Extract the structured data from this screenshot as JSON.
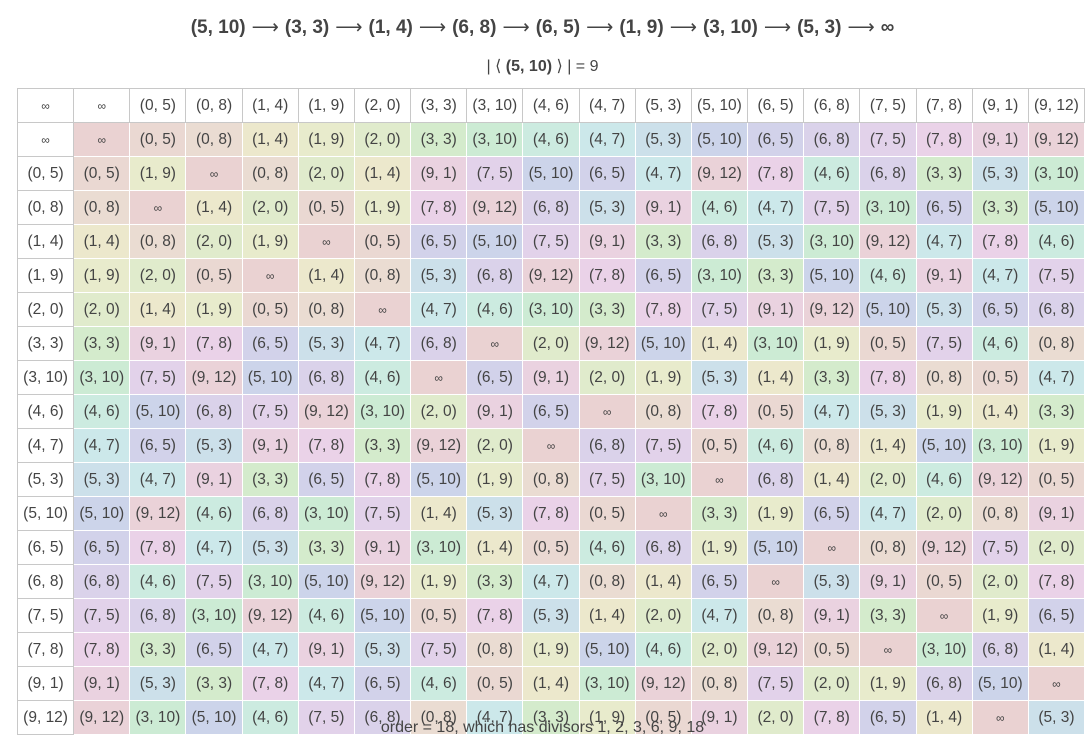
{
  "title": {
    "cycle": [
      "(5, 10)",
      "(3, 3)",
      "(1, 4)",
      "(6, 8)",
      "(6, 5)",
      "(1, 9)",
      "(3, 10)",
      "(5, 3)",
      "∞"
    ],
    "arrow": "⟶"
  },
  "subtitle": {
    "prefix": "| ⟨",
    "generator": "(5, 10)",
    "suffix": "⟩ | = 9"
  },
  "footer": "order = 18, which has divisors 1, 2, 3, 6, 9, 18",
  "colors": {
    "∞": "#ead2d2",
    "(0, 5)": "#ead8d2",
    "(0, 8)": "#eadcd2",
    "(1, 4)": "#ece8cc",
    "(1, 9)": "#e8ebcc",
    "(2, 0)": "#e0ebcc",
    "(3, 3)": "#d4ebcc",
    "(3, 10)": "#ccebd4",
    "(4, 6)": "#ccebe0",
    "(4, 7)": "#cce8ea",
    "(5, 3)": "#cce0ea",
    "(5, 10)": "#ccd4ea",
    "(6, 5)": "#d2d2ea",
    "(6, 8)": "#dad2ea",
    "(7, 5)": "#e2d2ea",
    "(7, 8)": "#ead2e8",
    "(9, 1)": "#ead2e0",
    "(9, 12)": "#ead2d8"
  },
  "table": {
    "header": [
      "∞",
      "∞",
      "(0, 5)",
      "(0, 8)",
      "(1, 4)",
      "(1, 9)",
      "(2, 0)",
      "(3, 3)",
      "(3, 10)",
      "(4, 6)",
      "(4, 7)",
      "(5, 3)",
      "(5, 10)",
      "(6, 5)",
      "(6, 8)",
      "(7, 5)",
      "(7, 8)",
      "(9, 1)",
      "(9, 12)"
    ],
    "rows": [
      [
        "∞",
        "∞",
        "(0, 5)",
        "(0, 8)",
        "(1, 4)",
        "(1, 9)",
        "(2, 0)",
        "(3, 3)",
        "(3, 10)",
        "(4, 6)",
        "(4, 7)",
        "(5, 3)",
        "(5, 10)",
        "(6, 5)",
        "(6, 8)",
        "(7, 5)",
        "(7, 8)",
        "(9, 1)",
        "(9, 12)"
      ],
      [
        "(0, 5)",
        "(0, 5)",
        "(1, 9)",
        "∞",
        "(0, 8)",
        "(2, 0)",
        "(1, 4)",
        "(9, 1)",
        "(7, 5)",
        "(5, 10)",
        "(6, 5)",
        "(4, 7)",
        "(9, 12)",
        "(7, 8)",
        "(4, 6)",
        "(6, 8)",
        "(3, 3)",
        "(5, 3)",
        "(3, 10)"
      ],
      [
        "(0, 8)",
        "(0, 8)",
        "∞",
        "(1, 4)",
        "(2, 0)",
        "(0, 5)",
        "(1, 9)",
        "(7, 8)",
        "(9, 12)",
        "(6, 8)",
        "(5, 3)",
        "(9, 1)",
        "(4, 6)",
        "(4, 7)",
        "(7, 5)",
        "(3, 10)",
        "(6, 5)",
        "(3, 3)",
        "(5, 10)"
      ],
      [
        "(1, 4)",
        "(1, 4)",
        "(0, 8)",
        "(2, 0)",
        "(1, 9)",
        "∞",
        "(0, 5)",
        "(6, 5)",
        "(5, 10)",
        "(7, 5)",
        "(9, 1)",
        "(3, 3)",
        "(6, 8)",
        "(5, 3)",
        "(3, 10)",
        "(9, 12)",
        "(4, 7)",
        "(7, 8)",
        "(4, 6)"
      ],
      [
        "(1, 9)",
        "(1, 9)",
        "(2, 0)",
        "(0, 5)",
        "∞",
        "(1, 4)",
        "(0, 8)",
        "(5, 3)",
        "(6, 8)",
        "(9, 12)",
        "(7, 8)",
        "(6, 5)",
        "(3, 10)",
        "(3, 3)",
        "(5, 10)",
        "(4, 6)",
        "(9, 1)",
        "(4, 7)",
        "(7, 5)"
      ],
      [
        "(2, 0)",
        "(2, 0)",
        "(1, 4)",
        "(1, 9)",
        "(0, 5)",
        "(0, 8)",
        "∞",
        "(4, 7)",
        "(4, 6)",
        "(3, 10)",
        "(3, 3)",
        "(7, 8)",
        "(7, 5)",
        "(9, 1)",
        "(9, 12)",
        "(5, 10)",
        "(5, 3)",
        "(6, 5)",
        "(6, 8)"
      ],
      [
        "(3, 3)",
        "(3, 3)",
        "(9, 1)",
        "(7, 8)",
        "(6, 5)",
        "(5, 3)",
        "(4, 7)",
        "(6, 8)",
        "∞",
        "(2, 0)",
        "(9, 12)",
        "(5, 10)",
        "(1, 4)",
        "(3, 10)",
        "(1, 9)",
        "(0, 5)",
        "(7, 5)",
        "(4, 6)",
        "(0, 8)"
      ],
      [
        "(3, 10)",
        "(3, 10)",
        "(7, 5)",
        "(9, 12)",
        "(5, 10)",
        "(6, 8)",
        "(4, 6)",
        "∞",
        "(6, 5)",
        "(9, 1)",
        "(2, 0)",
        "(1, 9)",
        "(5, 3)",
        "(1, 4)",
        "(3, 3)",
        "(7, 8)",
        "(0, 8)",
        "(0, 5)",
        "(4, 7)"
      ],
      [
        "(4, 6)",
        "(4, 6)",
        "(5, 10)",
        "(6, 8)",
        "(7, 5)",
        "(9, 12)",
        "(3, 10)",
        "(2, 0)",
        "(9, 1)",
        "(6, 5)",
        "∞",
        "(0, 8)",
        "(7, 8)",
        "(0, 5)",
        "(4, 7)",
        "(5, 3)",
        "(1, 9)",
        "(1, 4)",
        "(3, 3)"
      ],
      [
        "(4, 7)",
        "(4, 7)",
        "(6, 5)",
        "(5, 3)",
        "(9, 1)",
        "(7, 8)",
        "(3, 3)",
        "(9, 12)",
        "(2, 0)",
        "∞",
        "(6, 8)",
        "(7, 5)",
        "(0, 5)",
        "(4, 6)",
        "(0, 8)",
        "(1, 4)",
        "(5, 10)",
        "(3, 10)",
        "(1, 9)"
      ],
      [
        "(5, 3)",
        "(5, 3)",
        "(4, 7)",
        "(9, 1)",
        "(3, 3)",
        "(6, 5)",
        "(7, 8)",
        "(5, 10)",
        "(1, 9)",
        "(0, 8)",
        "(7, 5)",
        "(3, 10)",
        "∞",
        "(6, 8)",
        "(1, 4)",
        "(2, 0)",
        "(4, 6)",
        "(9, 12)",
        "(0, 5)"
      ],
      [
        "(5, 10)",
        "(5, 10)",
        "(9, 12)",
        "(4, 6)",
        "(6, 8)",
        "(3, 10)",
        "(7, 5)",
        "(1, 4)",
        "(5, 3)",
        "(7, 8)",
        "(0, 5)",
        "∞",
        "(3, 3)",
        "(1, 9)",
        "(6, 5)",
        "(4, 7)",
        "(2, 0)",
        "(0, 8)",
        "(9, 1)"
      ],
      [
        "(6, 5)",
        "(6, 5)",
        "(7, 8)",
        "(4, 7)",
        "(5, 3)",
        "(3, 3)",
        "(9, 1)",
        "(3, 10)",
        "(1, 4)",
        "(0, 5)",
        "(4, 6)",
        "(6, 8)",
        "(1, 9)",
        "(5, 10)",
        "∞",
        "(0, 8)",
        "(9, 12)",
        "(7, 5)",
        "(2, 0)"
      ],
      [
        "(6, 8)",
        "(6, 8)",
        "(4, 6)",
        "(7, 5)",
        "(3, 10)",
        "(5, 10)",
        "(9, 12)",
        "(1, 9)",
        "(3, 3)",
        "(4, 7)",
        "(0, 8)",
        "(1, 4)",
        "(6, 5)",
        "∞",
        "(5, 3)",
        "(9, 1)",
        "(0, 5)",
        "(2, 0)",
        "(7, 8)"
      ],
      [
        "(7, 5)",
        "(7, 5)",
        "(6, 8)",
        "(3, 10)",
        "(9, 12)",
        "(4, 6)",
        "(5, 10)",
        "(0, 5)",
        "(7, 8)",
        "(5, 3)",
        "(1, 4)",
        "(2, 0)",
        "(4, 7)",
        "(0, 8)",
        "(9, 1)",
        "(3, 3)",
        "∞",
        "(1, 9)",
        "(6, 5)"
      ],
      [
        "(7, 8)",
        "(7, 8)",
        "(3, 3)",
        "(6, 5)",
        "(4, 7)",
        "(9, 1)",
        "(5, 3)",
        "(7, 5)",
        "(0, 8)",
        "(1, 9)",
        "(5, 10)",
        "(4, 6)",
        "(2, 0)",
        "(9, 12)",
        "(0, 5)",
        "∞",
        "(3, 10)",
        "(6, 8)",
        "(1, 4)"
      ],
      [
        "(9, 1)",
        "(9, 1)",
        "(5, 3)",
        "(3, 3)",
        "(7, 8)",
        "(4, 7)",
        "(6, 5)",
        "(4, 6)",
        "(0, 5)",
        "(1, 4)",
        "(3, 10)",
        "(9, 12)",
        "(0, 8)",
        "(7, 5)",
        "(2, 0)",
        "(1, 9)",
        "(6, 8)",
        "(5, 10)",
        "∞"
      ],
      [
        "(9, 12)",
        "(9, 12)",
        "(3, 10)",
        "(5, 10)",
        "(4, 6)",
        "(7, 5)",
        "(6, 8)",
        "(0, 8)",
        "(4, 7)",
        "(3, 3)",
        "(1, 9)",
        "(0, 5)",
        "(9, 1)",
        "(2, 0)",
        "(7, 8)",
        "(6, 5)",
        "(1, 4)",
        "∞",
        "(5, 3)"
      ]
    ]
  }
}
